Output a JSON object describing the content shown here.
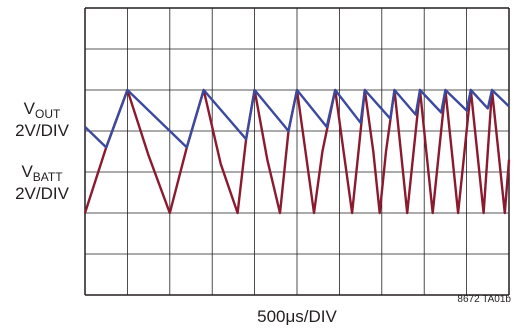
{
  "chart_data": {
    "type": "line",
    "xlabel": "500μs/DIV",
    "grid": {
      "x_divisions": 10,
      "y_divisions": 7
    },
    "channels": [
      {
        "name": "V",
        "subscript": "OUT",
        "scale": "2V/DIV"
      },
      {
        "name": "V",
        "subscript": "BATT",
        "scale": "2V/DIV"
      }
    ],
    "x_unit": "div",
    "y_unit": "div",
    "x_range": [
      0,
      10
    ],
    "y_range": [
      0,
      7
    ],
    "series": [
      {
        "color": "#3b4a9e",
        "points": [
          [
            0,
            4.1
          ],
          [
            0.5,
            3.6
          ],
          [
            1.0,
            5.0
          ],
          [
            2.4,
            3.6
          ],
          [
            2.8,
            5.0
          ],
          [
            3.8,
            3.8
          ],
          [
            4.0,
            5.0
          ],
          [
            4.8,
            4.0
          ],
          [
            5.0,
            5.0
          ],
          [
            5.7,
            4.1
          ],
          [
            5.9,
            5.0
          ],
          [
            6.5,
            4.2
          ],
          [
            6.6,
            5.0
          ],
          [
            7.2,
            4.3
          ],
          [
            7.3,
            5.0
          ],
          [
            7.8,
            4.4
          ],
          [
            7.9,
            5.0
          ],
          [
            8.4,
            4.45
          ],
          [
            8.5,
            5.0
          ],
          [
            9.0,
            4.5
          ],
          [
            9.1,
            5.0
          ],
          [
            9.5,
            4.55
          ],
          [
            9.6,
            5.0
          ],
          [
            10.0,
            4.6
          ]
        ]
      },
      {
        "color": "#8b1a2e",
        "points": [
          [
            0,
            2.0
          ],
          [
            0.5,
            3.6
          ],
          [
            1.0,
            5.0
          ],
          [
            1.5,
            3.4
          ],
          [
            2.0,
            2.0
          ],
          [
            2.4,
            3.6
          ],
          [
            2.8,
            5.0
          ],
          [
            3.2,
            3.2
          ],
          [
            3.6,
            2.0
          ],
          [
            3.8,
            3.8
          ],
          [
            4.0,
            5.0
          ],
          [
            4.3,
            3.3
          ],
          [
            4.6,
            2.0
          ],
          [
            4.8,
            4.0
          ],
          [
            5.0,
            5.0
          ],
          [
            5.2,
            3.5
          ],
          [
            5.4,
            2.0
          ],
          [
            5.6,
            3.5
          ],
          [
            5.9,
            5.0
          ],
          [
            6.1,
            3.5
          ],
          [
            6.3,
            2.0
          ],
          [
            6.45,
            3.5
          ],
          [
            6.6,
            5.0
          ],
          [
            6.8,
            3.5
          ],
          [
            6.95,
            2.0
          ],
          [
            7.1,
            3.5
          ],
          [
            7.3,
            5.0
          ],
          [
            7.45,
            3.5
          ],
          [
            7.6,
            2.0
          ],
          [
            7.75,
            3.5
          ],
          [
            7.9,
            5.0
          ],
          [
            8.05,
            3.5
          ],
          [
            8.2,
            2.0
          ],
          [
            8.35,
            3.5
          ],
          [
            8.5,
            5.0
          ],
          [
            8.65,
            3.5
          ],
          [
            8.8,
            2.0
          ],
          [
            8.95,
            3.5
          ],
          [
            9.1,
            5.0
          ],
          [
            9.25,
            3.5
          ],
          [
            9.4,
            2.0
          ],
          [
            9.5,
            3.5
          ],
          [
            9.6,
            5.0
          ],
          [
            9.75,
            3.5
          ],
          [
            9.9,
            2.0
          ],
          [
            10.0,
            3.3
          ]
        ]
      }
    ]
  },
  "figure_id": "8672 TA01b"
}
